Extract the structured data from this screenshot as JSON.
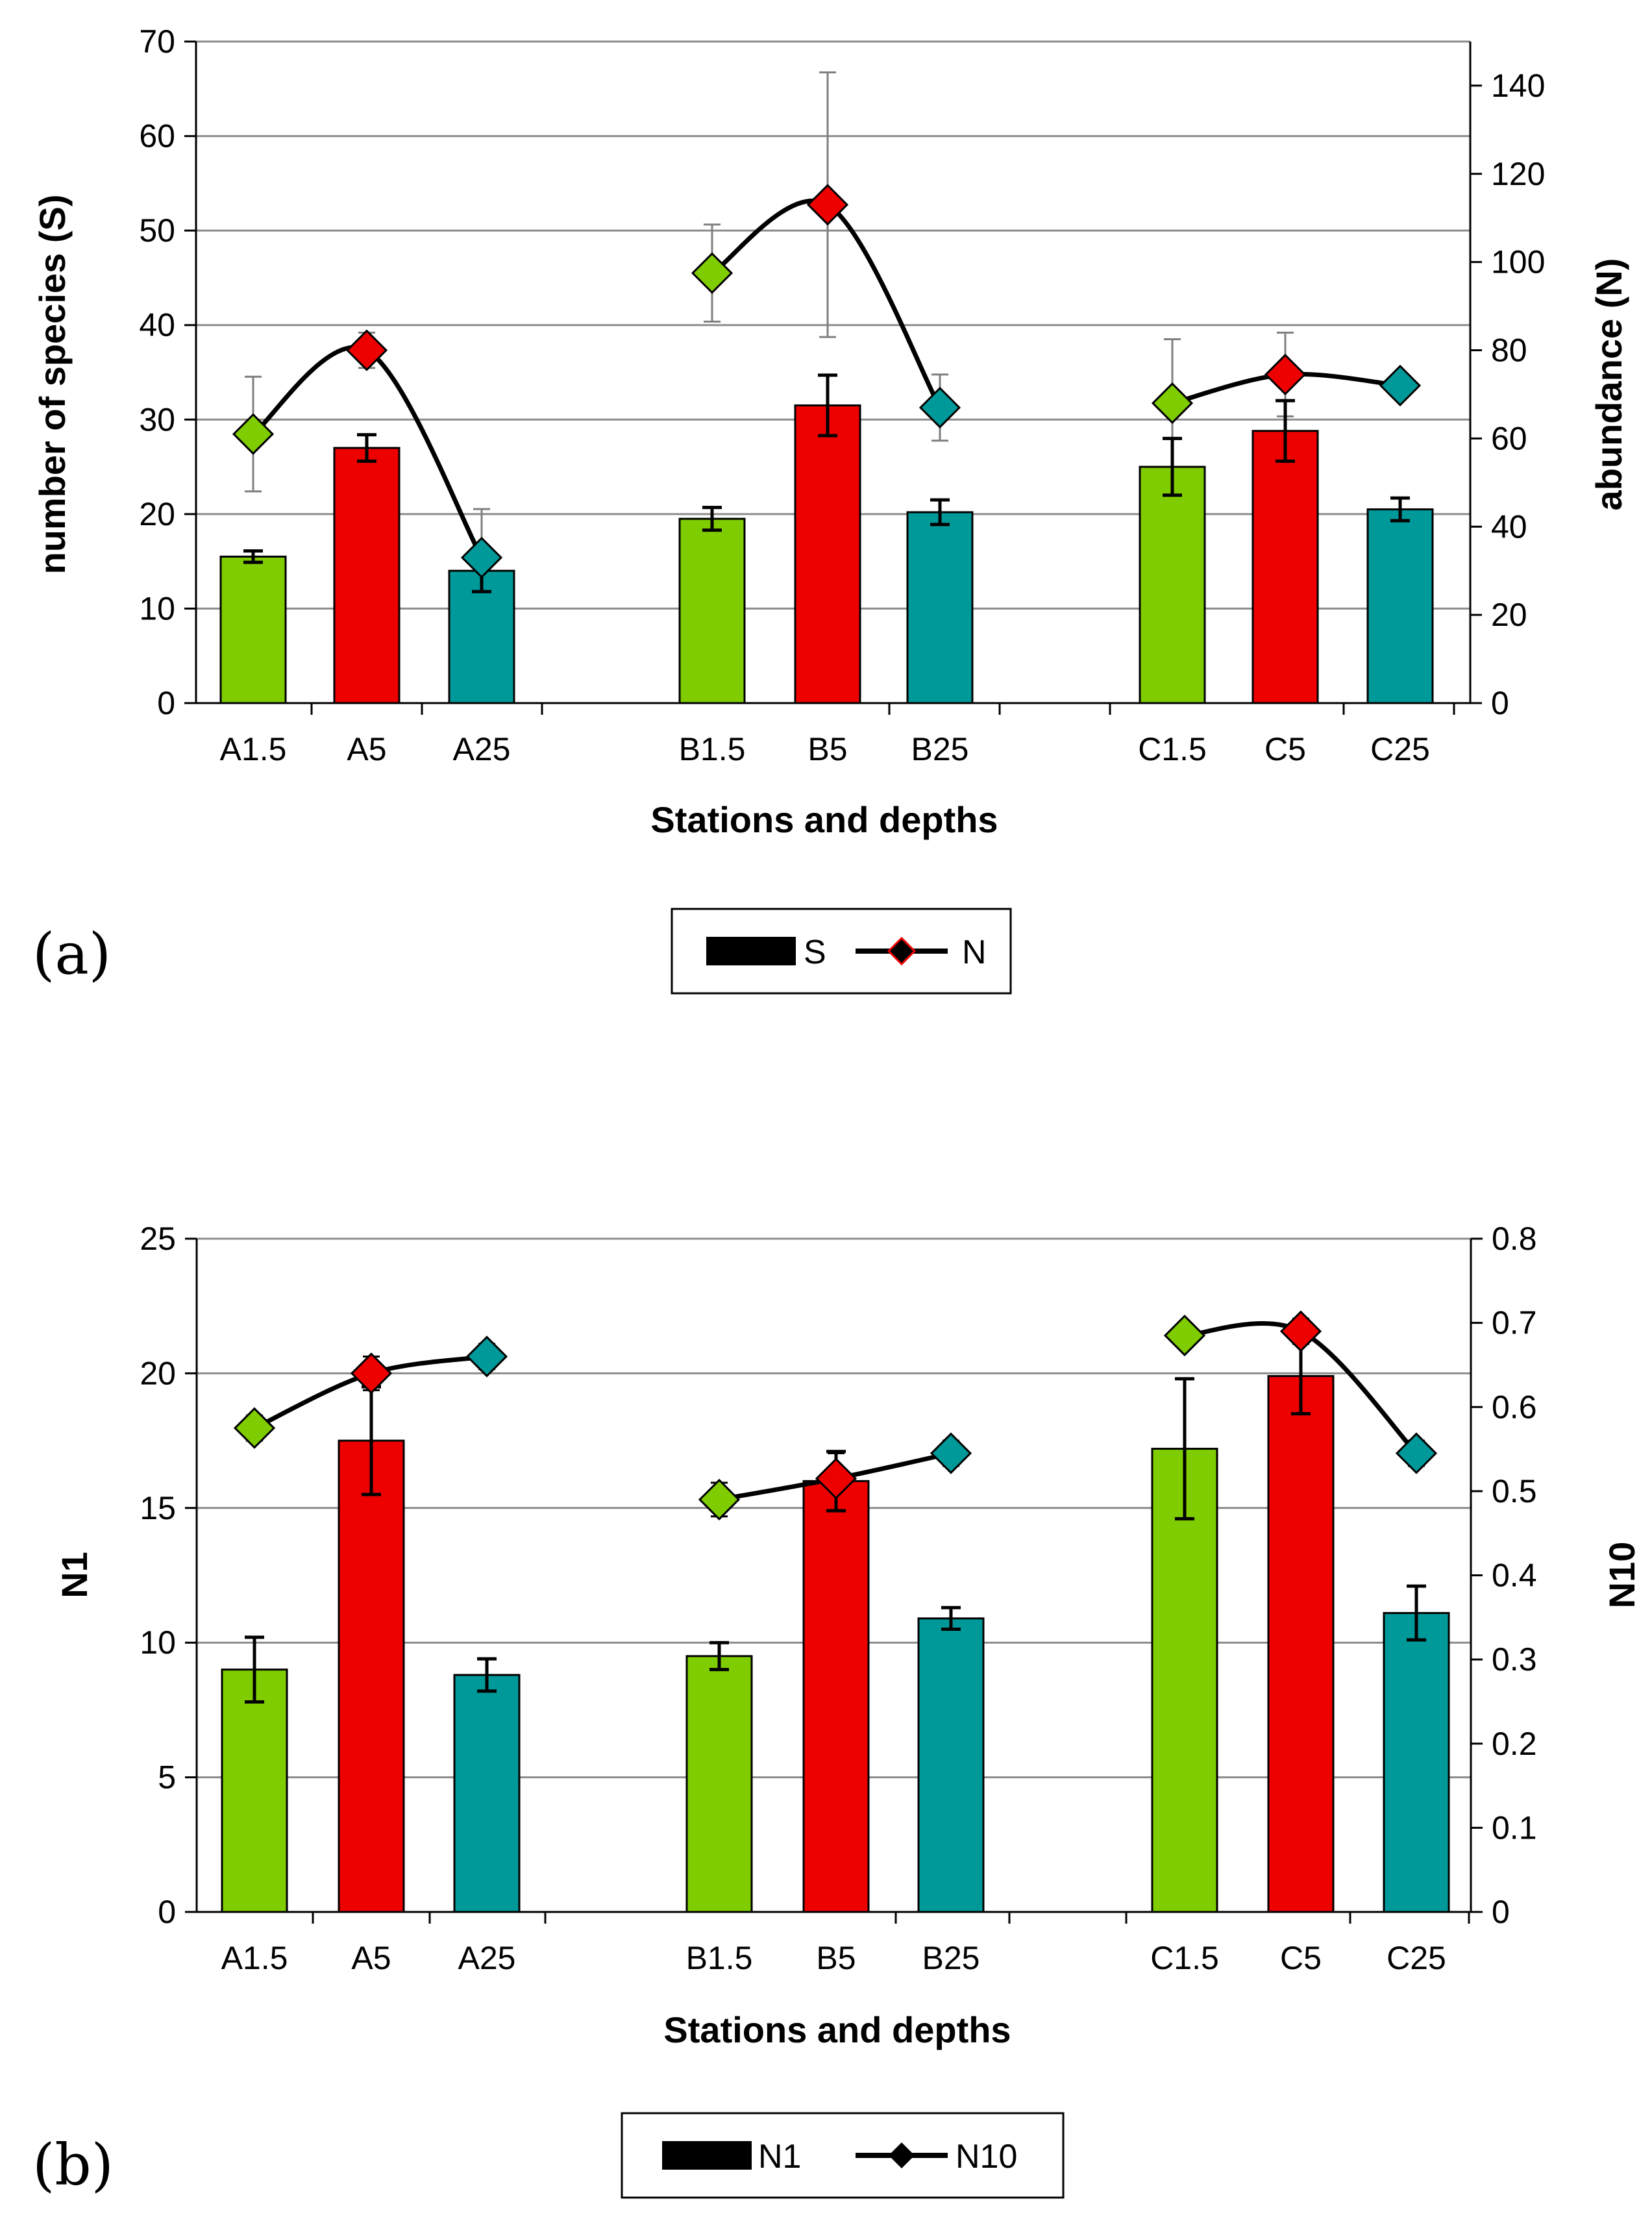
{
  "colors": {
    "green": "#7fcc00",
    "red": "#ee0000",
    "teal": "#009999",
    "line": "#000000",
    "grid": "#8c8c8c",
    "errorbar_N": "#7f7f7f"
  },
  "chart_data": [
    {
      "panel_label": "(a)",
      "type": "bar",
      "categories": [
        "A1.5",
        "A5",
        "A25",
        "B1.5",
        "B5",
        "B25",
        "C1.5",
        "C5",
        "C25"
      ],
      "bar_colors": [
        "green",
        "red",
        "teal",
        "green",
        "red",
        "teal",
        "green",
        "red",
        "teal"
      ],
      "xlabel": "Stations and depths",
      "ylabel": "number of species (S)",
      "y2label": "abundance (N)",
      "ylim": [
        0,
        70
      ],
      "y2lim": [
        0,
        150
      ],
      "yticks": [
        "0",
        "10",
        "20",
        "30",
        "40",
        "50",
        "60",
        "70"
      ],
      "y2ticks": [
        "0",
        "20",
        "40",
        "60",
        "80",
        "100",
        "120",
        "140"
      ],
      "grid": true,
      "series": [
        {
          "name": "S",
          "kind": "bar",
          "axis": "left",
          "values": [
            15.5,
            27,
            14,
            19.5,
            31.5,
            20.2,
            25,
            28.8,
            20.5
          ],
          "errors": [
            0.6,
            1.4,
            2.2,
            1.2,
            3.2,
            1.3,
            3,
            3.2,
            1.2
          ]
        },
        {
          "name": "N",
          "kind": "line",
          "axis": "right",
          "groups": [
            [
              0,
              1,
              2
            ],
            [
              3,
              4,
              5
            ],
            [
              6,
              7,
              8
            ]
          ],
          "values": [
            61,
            80,
            33,
            97.5,
            113,
            67,
            68,
            74.5,
            72
          ],
          "errors": [
            13,
            4,
            11,
            11,
            30,
            7.5,
            14.5,
            9.5,
            0
          ]
        }
      ],
      "legend": [
        "S",
        "N"
      ]
    },
    {
      "panel_label": "(b)",
      "type": "bar",
      "categories": [
        "A1.5",
        "A5",
        "A25",
        "B1.5",
        "B5",
        "B25",
        "C1.5",
        "C5",
        "C25"
      ],
      "bar_colors": [
        "green",
        "red",
        "teal",
        "green",
        "red",
        "teal",
        "green",
        "red",
        "teal"
      ],
      "xlabel": "Stations and depths",
      "ylabel": "N1",
      "y2label": "N10",
      "ylim": [
        0,
        25
      ],
      "y2lim": [
        0,
        0.8
      ],
      "yticks": [
        "0",
        "5",
        "10",
        "15",
        "20",
        "25"
      ],
      "y2ticks": [
        "0",
        "0.1",
        "0.2",
        "0.3",
        "0.4",
        "0.5",
        "0.6",
        "0.7",
        "0.8"
      ],
      "grid": true,
      "series": [
        {
          "name": "N1",
          "kind": "bar",
          "axis": "left",
          "values": [
            9,
            17.5,
            8.8,
            9.5,
            16,
            10.9,
            17.2,
            19.9,
            11.1
          ],
          "errors": [
            1.2,
            2,
            0.6,
            0.5,
            1.1,
            0.4,
            2.6,
            1.4,
            1
          ]
        },
        {
          "name": "N10",
          "kind": "line",
          "axis": "right",
          "groups": [
            [
              0,
              1,
              2
            ],
            [
              3,
              4,
              5
            ],
            [
              6,
              7,
              8
            ]
          ],
          "values": [
            0.575,
            0.64,
            0.66,
            0.49,
            0.515,
            0.545,
            0.685,
            0.69,
            0.545
          ],
          "errors": [
            0.015,
            0.02,
            0.015,
            0.02,
            0.03,
            0.015,
            0.01,
            0.015,
            0.015
          ]
        }
      ],
      "legend": [
        "N1",
        "N10"
      ]
    }
  ]
}
